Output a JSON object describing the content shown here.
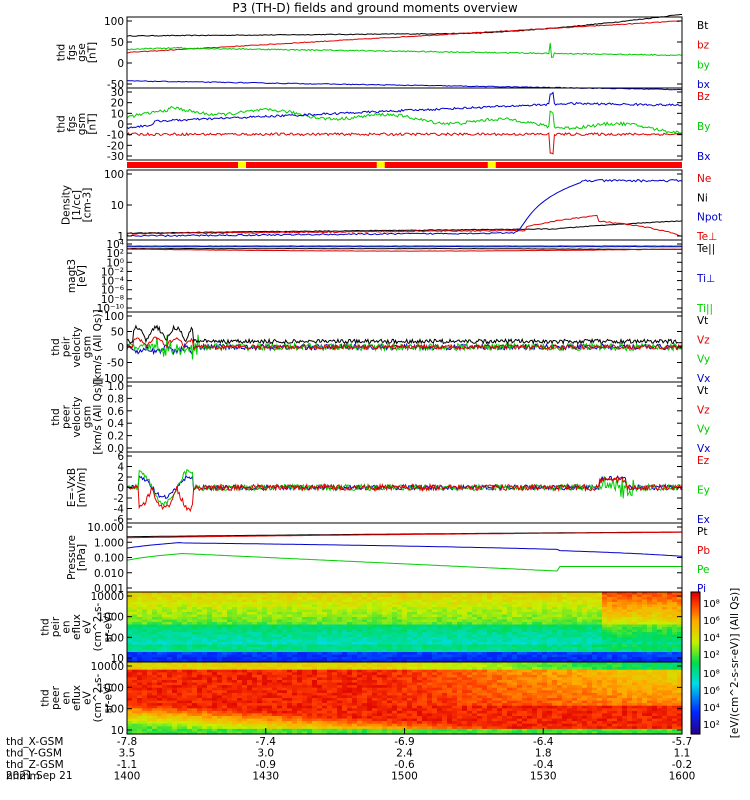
{
  "title": "P3 (TH-D) fields and ground moments overview",
  "date_label": "2021 Sep 21",
  "colors": {
    "black": "#000000",
    "red": "#e00000",
    "green": "#00cc00",
    "blue": "#0000cc"
  },
  "chart_data": [
    {
      "type": "line",
      "name": "fgs_gse",
      "ylabel": [
        "thd",
        "fgs",
        "gse",
        "[nT]"
      ],
      "ylim": [
        -70,
        110
      ],
      "yticks": [
        "100",
        "50",
        "0",
        "-50"
      ],
      "series": [
        {
          "name": "Bt",
          "color": "black"
        },
        {
          "name": "bz",
          "color": "red"
        },
        {
          "name": "by",
          "color": "green"
        },
        {
          "name": "bx",
          "color": "blue"
        }
      ]
    },
    {
      "type": "line",
      "name": "fgs_gsm",
      "ylabel": [
        "thd",
        "fgs",
        "gsm",
        "[nT]"
      ],
      "ylim": [
        -35,
        32
      ],
      "yticks": [
        "30",
        "20",
        "10",
        "0",
        "-10",
        "-20",
        "-30"
      ],
      "series": [
        {
          "name": "Bz",
          "color": "red"
        },
        {
          "name": "By",
          "color": "green"
        },
        {
          "name": "Bx",
          "color": "blue"
        }
      ]
    },
    {
      "type": "bar",
      "name": "mode_bar",
      "colors": [
        "red",
        "yellow"
      ]
    },
    {
      "type": "line",
      "name": "density",
      "ylabel": [
        "Density",
        "[1/cc]",
        "[cm-3]"
      ],
      "yscale": "log",
      "yticks": [
        "100",
        "10",
        "1"
      ],
      "series": [
        {
          "name": "Ne",
          "color": "red"
        },
        {
          "name": "Ni",
          "color": "black"
        },
        {
          "name": "Npot",
          "color": "blue"
        }
      ]
    },
    {
      "type": "line",
      "name": "temperature",
      "ylabel": [
        "magt3",
        "[eV]"
      ],
      "yscale": "log",
      "yticks": [
        "10⁴",
        "10²",
        "10⁰",
        "10⁻²",
        "10⁻⁴",
        "10⁻⁶",
        "10⁻⁸",
        "10⁻¹⁰"
      ],
      "series": [
        {
          "name": "Te⊥",
          "color": "red"
        },
        {
          "name": "Te||",
          "color": "black"
        },
        {
          "name": "Ti⊥",
          "color": "blue"
        },
        {
          "name": "Ti||",
          "color": "green"
        }
      ]
    },
    {
      "type": "line",
      "name": "ion_velocity",
      "ylabel": [
        "thd",
        "peir",
        "velocity",
        "gsm",
        "[km/s (All Qs)]"
      ],
      "ylim": [
        -100,
        100
      ],
      "yticks": [
        "100",
        "50",
        "0",
        "-50",
        "-100"
      ],
      "series": [
        {
          "name": "Vt",
          "color": "black"
        },
        {
          "name": "Vz",
          "color": "red"
        },
        {
          "name": "Vy",
          "color": "green"
        },
        {
          "name": "Vx",
          "color": "blue"
        }
      ]
    },
    {
      "type": "line",
      "name": "electron_velocity",
      "ylabel": [
        "thd",
        "peer",
        "velocity",
        "gsm",
        "[km/s (All Qs)]"
      ],
      "yticks": [
        "1.0",
        "0.8",
        "0.6",
        "0.4",
        "0.2",
        "0.0"
      ],
      "series": [
        {
          "name": "Vt",
          "color": "black"
        },
        {
          "name": "Vz",
          "color": "red"
        },
        {
          "name": "Vy",
          "color": "green"
        },
        {
          "name": "Vx",
          "color": "blue"
        }
      ]
    },
    {
      "type": "line",
      "name": "efield",
      "ylabel": [
        "E=-VxB",
        "[mV/m]"
      ],
      "ylim": [
        -6,
        6
      ],
      "yticks": [
        "6",
        "4",
        "2",
        "0",
        "-2",
        "-4",
        "-6"
      ],
      "series": [
        {
          "name": "Ez",
          "color": "red"
        },
        {
          "name": "Ey",
          "color": "green"
        },
        {
          "name": "Ex",
          "color": "blue"
        }
      ]
    },
    {
      "type": "line",
      "name": "pressure",
      "ylabel": [
        "Pressure",
        "[nPa]"
      ],
      "yscale": "log",
      "yticks": [
        "10.000",
        "1.000",
        "0.100",
        "0.010",
        "0.001"
      ],
      "series": [
        {
          "name": "Pt",
          "color": "black"
        },
        {
          "name": "Pb",
          "color": "red"
        },
        {
          "name": "Pe",
          "color": "green"
        },
        {
          "name": "Pi",
          "color": "blue"
        }
      ]
    },
    {
      "type": "heatmap",
      "name": "ion_spectrogram",
      "ylabel": [
        "thd",
        "peir",
        "en",
        "eflux",
        "eV",
        "(cm^2-s-",
        "sr-eV)"
      ],
      "yscale": "log",
      "yticks": [
        "10000",
        "1000",
        "100",
        "10"
      ]
    },
    {
      "type": "heatmap",
      "name": "electron_spectrogram",
      "ylabel": [
        "thd",
        "peer",
        "en",
        "eflux",
        "eV",
        "(cm^2-s-",
        "sr-eV)"
      ],
      "yscale": "log",
      "yticks": [
        "10000",
        "1000",
        "100",
        "10"
      ]
    }
  ],
  "colorbar": {
    "ticks": [
      "10⁸",
      "10⁶",
      "10⁴",
      "10²"
    ],
    "label": "[eV/(cm^2-s-sr-eV)] (All Qs)]"
  },
  "xaxis": {
    "rows": [
      {
        "name": "thd_X-GSM",
        "values": [
          "-7.8",
          "-7.4",
          "-6.9",
          "-6.4",
          "-5.7"
        ]
      },
      {
        "name": "thd_Y-GSM",
        "values": [
          "3.5",
          "3.0",
          "2.4",
          "1.8",
          "1.1"
        ]
      },
      {
        "name": "thd_Z-GSM",
        "values": [
          "-1.1",
          "-0.9",
          "-0.6",
          "-0.4",
          "-0.2"
        ]
      },
      {
        "name": "hhmm",
        "values": [
          "1400",
          "1430",
          "1500",
          "1530",
          "1600"
        ]
      }
    ]
  }
}
